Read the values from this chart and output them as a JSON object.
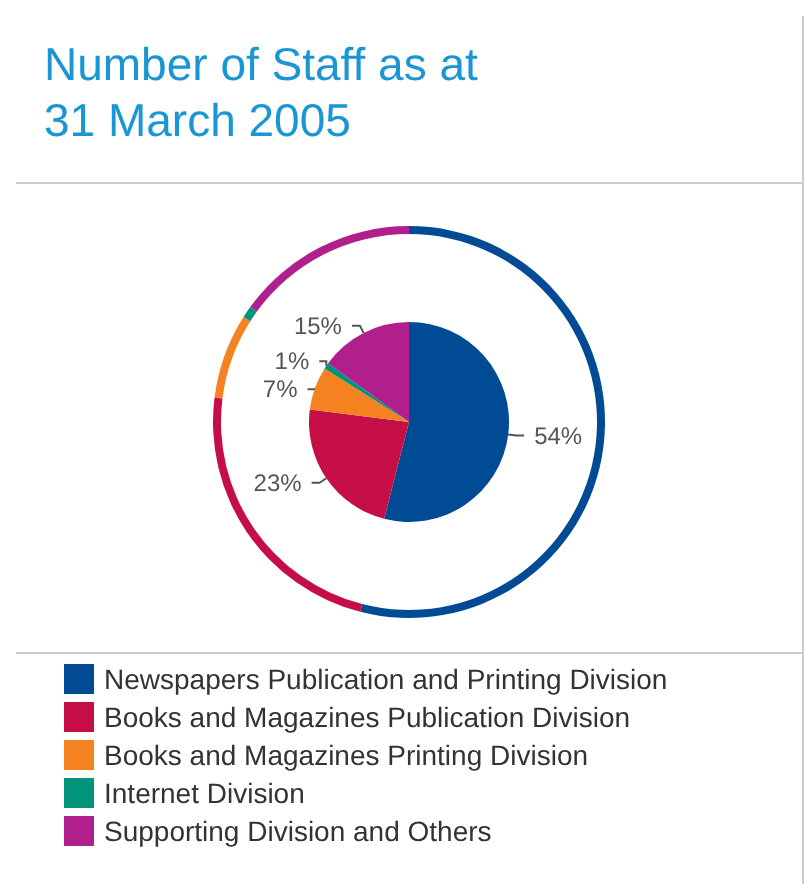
{
  "chart_data": {
    "type": "donut",
    "title": "Number of Staff as at\n31 March 2005",
    "categories": [
      "Newspapers Publication and Printing Division",
      "Books and Magazines Publication Division",
      "Books and Magazines Printing Division",
      "Internet Division",
      "Supporting Division and Others"
    ],
    "series": [
      {
        "values": [
          54,
          23,
          7,
          1,
          15
        ],
        "colors": [
          "#004b93",
          "#c50e45",
          "#f58220",
          "#00957a",
          "#b01f8c"
        ],
        "value_labels": [
          "54%",
          "23%",
          "7%",
          "1%",
          "15%"
        ]
      },
      {
        "values": [
          54,
          23,
          7,
          1,
          15
        ],
        "colors": [
          "#004b93",
          "#c50e45",
          "#f58220",
          "#00957a",
          "#b01f8c"
        ]
      }
    ],
    "legend": "bottom"
  }
}
